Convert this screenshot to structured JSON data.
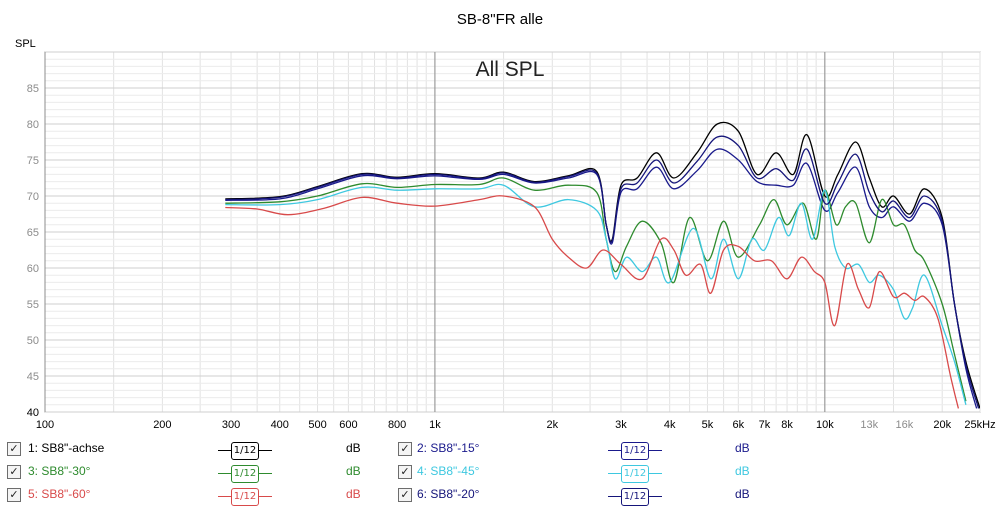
{
  "chart_data": {
    "type": "line",
    "title": "SB-8\"FR alle",
    "subtitle": "All SPL",
    "ylabel": "SPL",
    "xlabel": "",
    "xscale": "log",
    "xlim": [
      100,
      25000
    ],
    "ylim": [
      40,
      90
    ],
    "grid": true,
    "x_ticks": [
      {
        "v": 100,
        "label": "100"
      },
      {
        "v": 200,
        "label": "200"
      },
      {
        "v": 300,
        "label": "300"
      },
      {
        "v": 400,
        "label": "400"
      },
      {
        "v": 500,
        "label": "500"
      },
      {
        "v": 600,
        "label": "600"
      },
      {
        "v": 800,
        "label": "800"
      },
      {
        "v": 1000,
        "label": "1k"
      },
      {
        "v": 2000,
        "label": "2k"
      },
      {
        "v": 3000,
        "label": "3k"
      },
      {
        "v": 4000,
        "label": "4k"
      },
      {
        "v": 5000,
        "label": "5k"
      },
      {
        "v": 6000,
        "label": "6k"
      },
      {
        "v": 7000,
        "label": "7k"
      },
      {
        "v": 8000,
        "label": "8k"
      },
      {
        "v": 10000,
        "label": "10k"
      },
      {
        "v": 13000,
        "label": "13k"
      },
      {
        "v": 16000,
        "label": "16k"
      },
      {
        "v": 20000,
        "label": "20k"
      },
      {
        "v": 25000,
        "label": "25kHz"
      }
    ],
    "y_ticks": [
      {
        "v": 40,
        "label": "40"
      },
      {
        "v": 45,
        "label": "45"
      },
      {
        "v": 50,
        "label": "50"
      },
      {
        "v": 55,
        "label": "55"
      },
      {
        "v": 60,
        "label": "60"
      },
      {
        "v": 65,
        "label": "65"
      },
      {
        "v": 70,
        "label": "70"
      },
      {
        "v": 75,
        "label": "75"
      },
      {
        "v": 80,
        "label": "80"
      },
      {
        "v": 85,
        "label": "85"
      }
    ],
    "series": [
      {
        "name": "1: SB8\"-achse",
        "color": "#000000",
        "points": [
          [
            290,
            69.6
          ],
          [
            400,
            69.9
          ],
          [
            500,
            71.3
          ],
          [
            650,
            73.1
          ],
          [
            800,
            72.6
          ],
          [
            1000,
            73.1
          ],
          [
            1300,
            72.5
          ],
          [
            1500,
            73.3
          ],
          [
            1800,
            72.0
          ],
          [
            2200,
            72.8
          ],
          [
            2600,
            73.4
          ],
          [
            2750,
            66.0
          ],
          [
            2850,
            64.0
          ],
          [
            3000,
            71.5
          ],
          [
            3300,
            72.5
          ],
          [
            3700,
            76.0
          ],
          [
            4100,
            72.5
          ],
          [
            4700,
            76.0
          ],
          [
            5300,
            80.0
          ],
          [
            6000,
            79.0
          ],
          [
            6700,
            73.0
          ],
          [
            7500,
            76.0
          ],
          [
            8300,
            73.0
          ],
          [
            9000,
            78.5
          ],
          [
            10000,
            70.0
          ],
          [
            10800,
            73.0
          ],
          [
            12000,
            77.5
          ],
          [
            13000,
            72.5
          ],
          [
            14000,
            68.5
          ],
          [
            15000,
            70.0
          ],
          [
            16500,
            67.5
          ],
          [
            18000,
            71.0
          ],
          [
            20000,
            67.0
          ],
          [
            21500,
            55.0
          ],
          [
            23000,
            47.0
          ],
          [
            25000,
            40.5
          ]
        ]
      },
      {
        "name": "2: SB8\"-15°",
        "color": "#1a1a8c",
        "points": [
          [
            290,
            69.4
          ],
          [
            400,
            69.6
          ],
          [
            500,
            71.0
          ],
          [
            650,
            72.8
          ],
          [
            800,
            72.4
          ],
          [
            1000,
            72.8
          ],
          [
            1300,
            72.3
          ],
          [
            1500,
            73.0
          ],
          [
            1800,
            71.8
          ],
          [
            2200,
            72.5
          ],
          [
            2600,
            73.0
          ],
          [
            2750,
            66.0
          ],
          [
            2850,
            63.5
          ],
          [
            3000,
            70.5
          ],
          [
            3300,
            71.0
          ],
          [
            3700,
            74.0
          ],
          [
            4100,
            71.0
          ],
          [
            4700,
            73.5
          ],
          [
            5300,
            76.5
          ],
          [
            6000,
            75.0
          ],
          [
            6700,
            72.0
          ],
          [
            7500,
            71.5
          ],
          [
            8300,
            71.5
          ],
          [
            9000,
            74.5
          ],
          [
            10000,
            68.0
          ],
          [
            10800,
            70.5
          ],
          [
            12000,
            74.0
          ],
          [
            13000,
            68.5
          ],
          [
            14000,
            67.0
          ],
          [
            15000,
            68.5
          ],
          [
            16500,
            66.5
          ],
          [
            18000,
            69.0
          ],
          [
            20000,
            66.0
          ],
          [
            21500,
            55.0
          ],
          [
            23000,
            46.0
          ],
          [
            24500,
            40.5
          ]
        ]
      },
      {
        "name": "3: SB8\"-30°",
        "color": "#2e8b2e",
        "points": [
          [
            290,
            69.0
          ],
          [
            400,
            69.2
          ],
          [
            500,
            70.0
          ],
          [
            650,
            71.7
          ],
          [
            800,
            71.2
          ],
          [
            1000,
            71.6
          ],
          [
            1300,
            71.6
          ],
          [
            1500,
            72.5
          ],
          [
            1800,
            70.8
          ],
          [
            2200,
            71.5
          ],
          [
            2600,
            70.5
          ],
          [
            2750,
            64.0
          ],
          [
            2900,
            59.5
          ],
          [
            3100,
            63.0
          ],
          [
            3400,
            66.5
          ],
          [
            3800,
            63.5
          ],
          [
            4100,
            58.0
          ],
          [
            4500,
            67.0
          ],
          [
            5000,
            61.0
          ],
          [
            5500,
            66.5
          ],
          [
            6000,
            61.5
          ],
          [
            6800,
            66.0
          ],
          [
            7400,
            69.5
          ],
          [
            8000,
            66.0
          ],
          [
            8800,
            69.0
          ],
          [
            9500,
            64.0
          ],
          [
            10000,
            70.8
          ],
          [
            10700,
            66.0
          ],
          [
            11300,
            68.5
          ],
          [
            12000,
            69.0
          ],
          [
            13000,
            63.5
          ],
          [
            14000,
            69.5
          ],
          [
            15000,
            66.0
          ],
          [
            16000,
            66.0
          ],
          [
            17000,
            62.5
          ],
          [
            18000,
            61.0
          ],
          [
            20000,
            55.0
          ],
          [
            21500,
            48.0
          ],
          [
            23000,
            41.5
          ]
        ]
      },
      {
        "name": "4: SB8\"-45°",
        "color": "#3ec8e0",
        "points": [
          [
            290,
            68.8
          ],
          [
            400,
            68.8
          ],
          [
            500,
            69.5
          ],
          [
            650,
            71.2
          ],
          [
            800,
            70.8
          ],
          [
            1000,
            71.0
          ],
          [
            1300,
            71.0
          ],
          [
            1500,
            71.5
          ],
          [
            1800,
            68.5
          ],
          [
            2200,
            69.5
          ],
          [
            2600,
            68.0
          ],
          [
            2750,
            64.0
          ],
          [
            2900,
            58.5
          ],
          [
            3100,
            61.5
          ],
          [
            3400,
            59.5
          ],
          [
            3700,
            61.5
          ],
          [
            4000,
            58.0
          ],
          [
            4600,
            65.5
          ],
          [
            5100,
            58.5
          ],
          [
            5500,
            64.0
          ],
          [
            6000,
            58.5
          ],
          [
            6500,
            64.0
          ],
          [
            7000,
            62.5
          ],
          [
            7600,
            67.0
          ],
          [
            8100,
            64.5
          ],
          [
            8700,
            69.0
          ],
          [
            9300,
            64.0
          ],
          [
            10000,
            70.8
          ],
          [
            10600,
            63.0
          ],
          [
            11300,
            60.0
          ],
          [
            12200,
            60.5
          ],
          [
            13000,
            58.0
          ],
          [
            13800,
            59.0
          ],
          [
            15000,
            57.0
          ],
          [
            16000,
            53.0
          ],
          [
            16800,
            54.5
          ],
          [
            18000,
            59.0
          ],
          [
            20000,
            52.0
          ],
          [
            21500,
            47.0
          ],
          [
            23000,
            41.0
          ]
        ]
      },
      {
        "name": "5: SB8\"-60°",
        "color": "#d84a4a",
        "points": [
          [
            290,
            68.4
          ],
          [
            350,
            68.2
          ],
          [
            420,
            67.4
          ],
          [
            520,
            68.3
          ],
          [
            650,
            69.8
          ],
          [
            800,
            69.0
          ],
          [
            1000,
            68.6
          ],
          [
            1300,
            69.5
          ],
          [
            1500,
            70.0
          ],
          [
            1800,
            68.5
          ],
          [
            2000,
            64.0
          ],
          [
            2200,
            61.5
          ],
          [
            2450,
            60.0
          ],
          [
            2700,
            62.5
          ],
          [
            3000,
            60.5
          ],
          [
            3400,
            58.5
          ],
          [
            3800,
            64.0
          ],
          [
            4100,
            62.5
          ],
          [
            4400,
            59.0
          ],
          [
            4800,
            60.5
          ],
          [
            5100,
            56.5
          ],
          [
            5500,
            62.5
          ],
          [
            6000,
            63.0
          ],
          [
            6600,
            61.0
          ],
          [
            7300,
            61.0
          ],
          [
            8000,
            58.5
          ],
          [
            8700,
            61.5
          ],
          [
            9400,
            59.5
          ],
          [
            10000,
            58.0
          ],
          [
            10600,
            52.0
          ],
          [
            11400,
            60.5
          ],
          [
            12200,
            57.0
          ],
          [
            13000,
            54.5
          ],
          [
            13800,
            59.5
          ],
          [
            15000,
            56.0
          ],
          [
            16000,
            56.5
          ],
          [
            17000,
            55.5
          ],
          [
            18000,
            56.0
          ],
          [
            19500,
            53.0
          ],
          [
            21000,
            45.0
          ],
          [
            22000,
            40.5
          ]
        ]
      },
      {
        "name": "6: SB8\"-20°",
        "color": "#15157a",
        "points": [
          [
            290,
            69.5
          ],
          [
            400,
            69.8
          ],
          [
            500,
            71.2
          ],
          [
            650,
            73.0
          ],
          [
            800,
            72.5
          ],
          [
            1000,
            73.0
          ],
          [
            1300,
            72.4
          ],
          [
            1500,
            73.2
          ],
          [
            1800,
            71.9
          ],
          [
            2200,
            72.7
          ],
          [
            2600,
            73.2
          ],
          [
            2750,
            66.0
          ],
          [
            2850,
            63.8
          ],
          [
            3000,
            71.0
          ],
          [
            3300,
            71.8
          ],
          [
            3700,
            75.0
          ],
          [
            4100,
            71.8
          ],
          [
            4700,
            74.8
          ],
          [
            5300,
            78.2
          ],
          [
            6000,
            77.0
          ],
          [
            6700,
            72.5
          ],
          [
            7500,
            73.8
          ],
          [
            8300,
            72.2
          ],
          [
            9000,
            76.5
          ],
          [
            10000,
            69.0
          ],
          [
            10800,
            71.8
          ],
          [
            12000,
            75.8
          ],
          [
            13000,
            70.5
          ],
          [
            14000,
            67.8
          ],
          [
            15000,
            69.3
          ],
          [
            16500,
            67.0
          ],
          [
            18000,
            70.0
          ],
          [
            20000,
            66.5
          ],
          [
            21500,
            55.0
          ],
          [
            23000,
            46.5
          ],
          [
            24800,
            40.5
          ]
        ]
      }
    ]
  },
  "legend": [
    {
      "check": "✓",
      "label": "1: SB8\"-achse",
      "smooth": "1/12",
      "unit": "dB",
      "color": "#000000"
    },
    {
      "check": "✓",
      "label": "2: SB8\"-15°",
      "smooth": "1/12",
      "unit": "dB",
      "color": "#1a1a8c"
    },
    {
      "check": "✓",
      "label": "3: SB8\"-30°",
      "smooth": "1/12",
      "unit": "dB",
      "color": "#2e8b2e"
    },
    {
      "check": "✓",
      "label": "4: SB8\"-45°",
      "smooth": "1/12",
      "unit": "dB",
      "color": "#3ec8e0"
    },
    {
      "check": "✓",
      "label": "5: SB8\"-60°",
      "smooth": "1/12",
      "unit": "dB",
      "color": "#d84a4a"
    },
    {
      "check": "✓",
      "label": "6: SB8\"-20°",
      "smooth": "1/12",
      "unit": "dB",
      "color": "#15157a"
    }
  ]
}
